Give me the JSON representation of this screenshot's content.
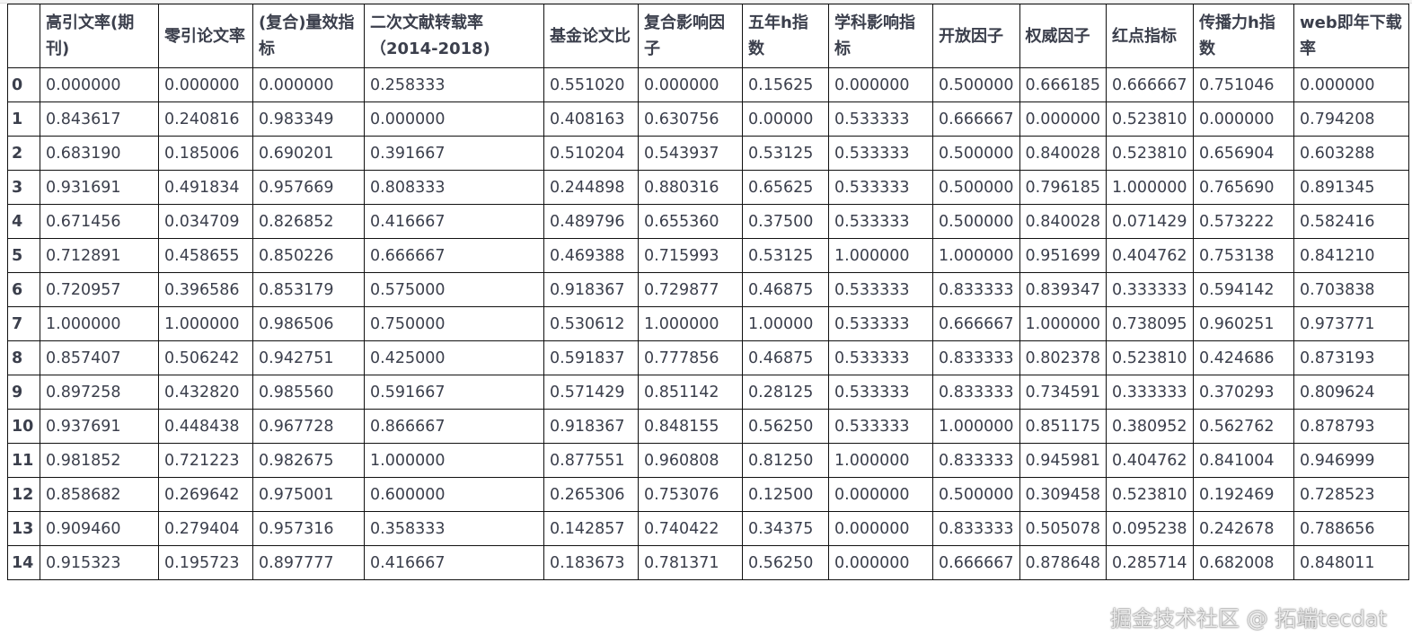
{
  "table": {
    "columns": [
      "",
      "高引文率(期刊)",
      "零引论文率",
      "(复合)量效指标",
      "二次文献转载率（2014-2018)",
      "基金论文比",
      "复合影响因子",
      "五年h指数",
      "学科影响指标",
      "开放因子",
      "权威因子",
      "红点指标",
      "传播力h指数",
      "web即年下载率"
    ],
    "rows": [
      [
        "0",
        "0.000000",
        "0.000000",
        "0.000000",
        "0.258333",
        "0.551020",
        "0.000000",
        "0.15625",
        "0.000000",
        "0.500000",
        "0.666185",
        "0.666667",
        "0.751046",
        "0.000000"
      ],
      [
        "1",
        "0.843617",
        "0.240816",
        "0.983349",
        "0.000000",
        "0.408163",
        "0.630756",
        "0.00000",
        "0.533333",
        "0.666667",
        "0.000000",
        "0.523810",
        "0.000000",
        "0.794208"
      ],
      [
        "2",
        "0.683190",
        "0.185006",
        "0.690201",
        "0.391667",
        "0.510204",
        "0.543937",
        "0.53125",
        "0.533333",
        "0.500000",
        "0.840028",
        "0.523810",
        "0.656904",
        "0.603288"
      ],
      [
        "3",
        "0.931691",
        "0.491834",
        "0.957669",
        "0.808333",
        "0.244898",
        "0.880316",
        "0.65625",
        "0.533333",
        "0.500000",
        "0.796185",
        "1.000000",
        "0.765690",
        "0.891345"
      ],
      [
        "4",
        "0.671456",
        "0.034709",
        "0.826852",
        "0.416667",
        "0.489796",
        "0.655360",
        "0.37500",
        "0.533333",
        "0.500000",
        "0.840028",
        "0.071429",
        "0.573222",
        "0.582416"
      ],
      [
        "5",
        "0.712891",
        "0.458655",
        "0.850226",
        "0.666667",
        "0.469388",
        "0.715993",
        "0.53125",
        "1.000000",
        "1.000000",
        "0.951699",
        "0.404762",
        "0.753138",
        "0.841210"
      ],
      [
        "6",
        "0.720957",
        "0.396586",
        "0.853179",
        "0.575000",
        "0.918367",
        "0.729877",
        "0.46875",
        "0.533333",
        "0.833333",
        "0.839347",
        "0.333333",
        "0.594142",
        "0.703838"
      ],
      [
        "7",
        "1.000000",
        "1.000000",
        "0.986506",
        "0.750000",
        "0.530612",
        "1.000000",
        "1.00000",
        "0.533333",
        "0.666667",
        "1.000000",
        "0.738095",
        "0.960251",
        "0.973771"
      ],
      [
        "8",
        "0.857407",
        "0.506242",
        "0.942751",
        "0.425000",
        "0.591837",
        "0.777856",
        "0.46875",
        "0.533333",
        "0.833333",
        "0.802378",
        "0.523810",
        "0.424686",
        "0.873193"
      ],
      [
        "9",
        "0.897258",
        "0.432820",
        "0.985560",
        "0.591667",
        "0.571429",
        "0.851142",
        "0.28125",
        "0.533333",
        "0.833333",
        "0.734591",
        "0.333333",
        "0.370293",
        "0.809624"
      ],
      [
        "10",
        "0.937691",
        "0.448438",
        "0.967728",
        "0.866667",
        "0.918367",
        "0.848155",
        "0.56250",
        "0.533333",
        "1.000000",
        "0.851175",
        "0.380952",
        "0.562762",
        "0.878793"
      ],
      [
        "11",
        "0.981852",
        "0.721223",
        "0.982675",
        "1.000000",
        "0.877551",
        "0.960808",
        "0.81250",
        "1.000000",
        "0.833333",
        "0.945981",
        "0.404762",
        "0.841004",
        "0.946999"
      ],
      [
        "12",
        "0.858682",
        "0.269642",
        "0.975001",
        "0.600000",
        "0.265306",
        "0.753076",
        "0.12500",
        "0.000000",
        "0.500000",
        "0.309458",
        "0.523810",
        "0.192469",
        "0.728523"
      ],
      [
        "13",
        "0.909460",
        "0.279404",
        "0.957316",
        "0.358333",
        "0.142857",
        "0.740422",
        "0.34375",
        "0.000000",
        "0.833333",
        "0.505078",
        "0.095238",
        "0.242678",
        "0.788656"
      ],
      [
        "14",
        "0.915323",
        "0.195723",
        "0.897777",
        "0.416667",
        "0.183673",
        "0.781371",
        "0.56250",
        "0.000000",
        "0.666667",
        "0.878648",
        "0.285714",
        "0.682008",
        "0.848011"
      ]
    ]
  },
  "watermark": "掘金技术社区 @ 拓端tecdat"
}
